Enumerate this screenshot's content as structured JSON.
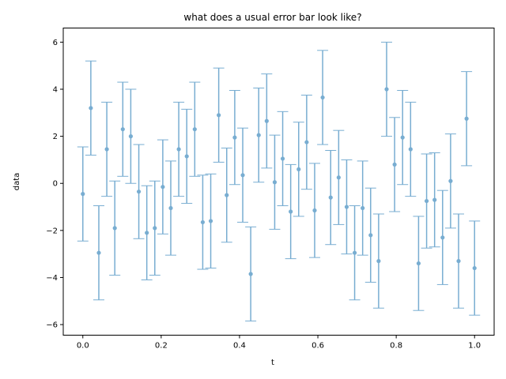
{
  "chart_data": {
    "type": "scatter",
    "title": "what does a usual error bar look like?",
    "xlabel": "t",
    "ylabel": "data",
    "xlim": [
      -0.05,
      1.05
    ],
    "ylim": [
      -6.45,
      6.6
    ],
    "x_ticks": [
      0.0,
      0.2,
      0.4,
      0.6,
      0.8,
      1.0
    ],
    "x_tick_labels": [
      "0.0",
      "0.2",
      "0.4",
      "0.6",
      "0.8",
      "1.0"
    ],
    "y_ticks": [
      -6,
      -4,
      -2,
      0,
      2,
      4,
      6
    ],
    "y_tick_labels": [
      "−6",
      "−4",
      "−2",
      "0",
      "2",
      "4",
      "6"
    ],
    "grid": false,
    "legend": "none",
    "error": 2.0,
    "color": "#1f77b4",
    "series": [
      {
        "x": [
          0.0,
          0.0204,
          0.0408,
          0.0612,
          0.0816,
          0.102,
          0.1224,
          0.1429,
          0.1633,
          0.1837,
          0.2041,
          0.2245,
          0.2449,
          0.2653,
          0.2857,
          0.3061,
          0.3265,
          0.3469,
          0.3673,
          0.3878,
          0.4082,
          0.4286,
          0.449,
          0.4694,
          0.4898,
          0.5102,
          0.5306,
          0.551,
          0.5714,
          0.5918,
          0.6122,
          0.6327,
          0.6531,
          0.6735,
          0.6939,
          0.7143,
          0.7347,
          0.7551,
          0.7755,
          0.7959,
          0.8163,
          0.8367,
          0.8571,
          0.8776,
          0.898,
          0.9184,
          0.9388,
          0.9592,
          0.9796,
          1.0
        ],
        "y": [
          -0.45,
          3.2,
          -2.95,
          1.45,
          -1.9,
          2.3,
          2.0,
          -0.35,
          -2.1,
          -1.9,
          -0.15,
          -1.05,
          1.45,
          1.15,
          2.3,
          -1.65,
          -1.6,
          2.9,
          -0.5,
          1.95,
          0.35,
          -3.85,
          2.05,
          2.65,
          0.05,
          1.05,
          -1.2,
          0.6,
          1.75,
          -1.15,
          3.65,
          -0.6,
          0.25,
          -1.0,
          -2.95,
          -1.05,
          -2.2,
          -3.3,
          4.0,
          0.8,
          1.95,
          1.45,
          -3.4,
          -0.75,
          -0.7,
          -2.3,
          0.1,
          -3.3,
          2.75,
          -3.6
        ]
      }
    ]
  }
}
